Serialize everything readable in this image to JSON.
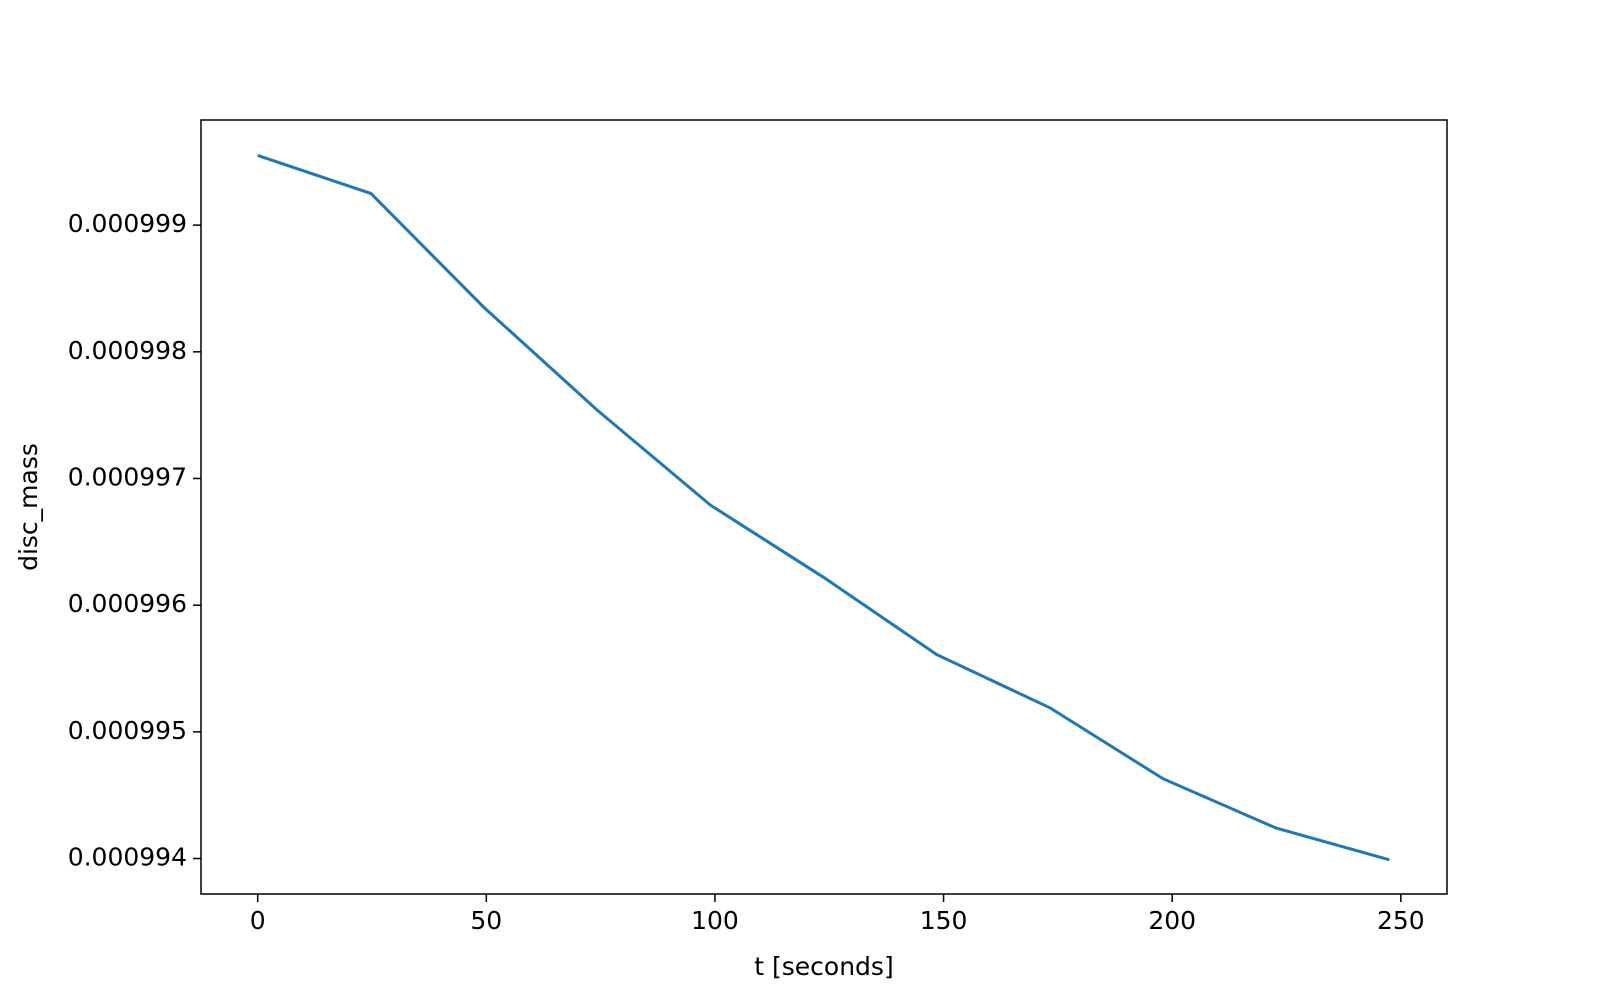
{
  "chart_data": {
    "type": "line",
    "x_label": "t [seconds]",
    "y_label": "disc_mass",
    "x": [
      0,
      24.75,
      49.5,
      74.25,
      99,
      123.75,
      148.5,
      173.25,
      198,
      222.75,
      247.5
    ],
    "series": [
      {
        "color": "#1f77b4",
        "values": [
          0.00099955,
          0.00099925,
          0.00099835,
          0.00099754,
          0.00099679,
          0.00099622,
          0.00099561,
          0.00099519,
          0.00099463,
          0.00099424,
          0.00099399
        ]
      }
    ],
    "xlim": [
      -12.4,
      260.1
    ],
    "xticks": [
      0,
      50,
      100,
      150,
      200,
      250
    ],
    "ylim": [
      0.00099372,
      0.00099983
    ],
    "yticks": [
      0.000994,
      0.000995,
      0.000996,
      0.000997,
      0.000998,
      0.000999
    ]
  }
}
